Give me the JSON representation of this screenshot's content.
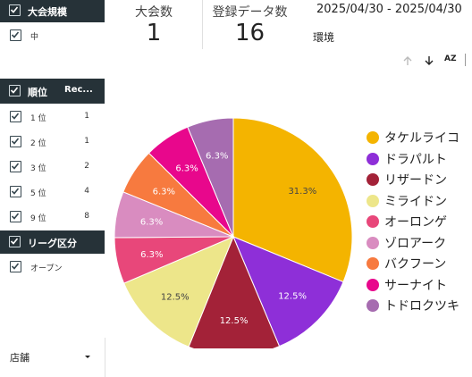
{
  "filters": {
    "tournament_size": {
      "header": "大会規模",
      "items": [
        {
          "label": "中"
        }
      ]
    },
    "rank": {
      "header_rank": "順位",
      "header_count": "Rec...",
      "items": [
        {
          "label": "1 位",
          "count": "1"
        },
        {
          "label": "2 位",
          "count": "1"
        },
        {
          "label": "3 位",
          "count": "2"
        },
        {
          "label": "5 位",
          "count": "4"
        },
        {
          "label": "9 位",
          "count": "8"
        }
      ]
    },
    "league": {
      "header": "リーグ区分",
      "items": [
        {
          "label": "オープン"
        }
      ]
    },
    "store_dropdown": {
      "label": "店舗"
    }
  },
  "metrics": {
    "tournaments": {
      "label": "大会数",
      "value": "1"
    },
    "records": {
      "label": "登録データ数",
      "value": "16"
    }
  },
  "date_range": "2025/04/30 - 2025/04/30",
  "env_label": "環境",
  "toolbar": {
    "sort_az": "AZ"
  },
  "chart_data": {
    "type": "pie",
    "title": "",
    "slices": [
      {
        "label": "タケルライコ",
        "value": 31.3,
        "display": "31.3%",
        "color": "#f4b400"
      },
      {
        "label": "ドラパルト",
        "value": 12.5,
        "display": "12.5%",
        "color": "#8e2fd8"
      },
      {
        "label": "リザードン",
        "value": 12.5,
        "display": "12.5%",
        "color": "#a32238"
      },
      {
        "label": "ミライドン",
        "value": 12.5,
        "display": "12.5%",
        "color": "#ede68a"
      },
      {
        "label": "オーロンゲ",
        "value": 6.3,
        "display": "6.3%",
        "color": "#e8477a"
      },
      {
        "label": "ゾロアーク",
        "value": 6.3,
        "display": "6.3%",
        "color": "#d98cc0"
      },
      {
        "label": "バクフーン",
        "value": 6.3,
        "display": "6.3%",
        "color": "#f77a3f"
      },
      {
        "label": "サーナイト",
        "value": 6.3,
        "display": "6.3%",
        "color": "#e8078c"
      },
      {
        "label": "トドロクツキ",
        "value": 6.3,
        "display": "6.3%",
        "color": "#a66cb0"
      }
    ],
    "legend": "right"
  }
}
